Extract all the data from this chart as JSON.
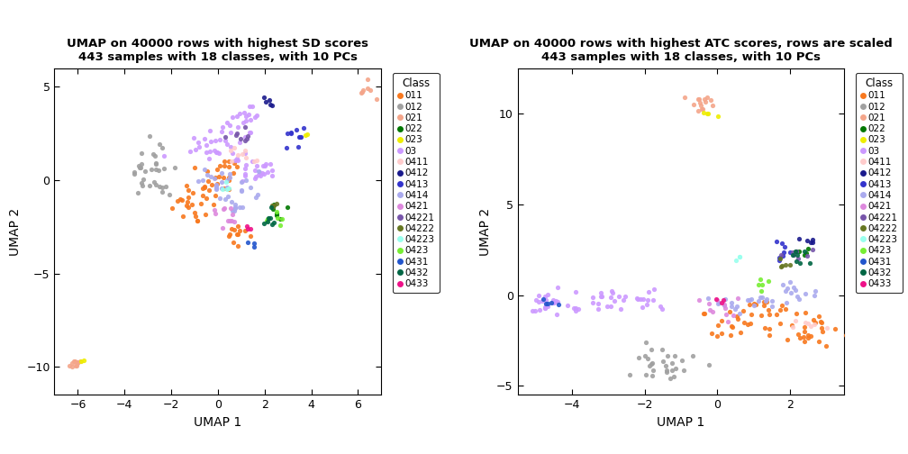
{
  "title1": "UMAP on 40000 rows with highest SD scores\n443 samples with 18 classes, with 10 PCs",
  "title2": "UMAP on 40000 rows with highest ATC scores, rows are scaled\n443 samples with 18 classes, with 10 PCs",
  "xlabel": "UMAP 1",
  "ylabel": "UMAP 2",
  "legend_title": "Class",
  "classes": [
    "011",
    "012",
    "021",
    "022",
    "023",
    "03",
    "0411",
    "0412",
    "0413",
    "0414",
    "0421",
    "04221",
    "04222",
    "04223",
    "0423",
    "0431",
    "0432",
    "0433"
  ],
  "colors": {
    "011": "#F8781E",
    "012": "#A0A0A0",
    "021": "#F4A58A",
    "022": "#007700",
    "023": "#EEEE00",
    "03": "#CC99FF",
    "0411": "#FFCCCC",
    "0412": "#1A1A8C",
    "0413": "#3333CC",
    "0414": "#AAAAEE",
    "0421": "#DD88DD",
    "04221": "#7755AA",
    "04222": "#667722",
    "04223": "#99FFEE",
    "0423": "#77EE33",
    "0431": "#2255CC",
    "0432": "#006644",
    "0433": "#EE1188"
  },
  "plot1_xlim": [
    -7,
    7
  ],
  "plot1_ylim": [
    -11.5,
    6
  ],
  "plot2_xlim": [
    -5.5,
    3.5
  ],
  "plot2_ylim": [
    -5.5,
    12.5
  ],
  "plot1_xticks": [
    -6,
    -4,
    -2,
    0,
    2,
    4,
    6
  ],
  "plot1_yticks": [
    -10,
    -5,
    0,
    5
  ],
  "plot2_xticks": [
    -4,
    -2,
    0,
    2
  ],
  "plot2_yticks": [
    -5,
    0,
    5,
    10
  ],
  "background_color": "#FFFFFF",
  "seed": 42
}
